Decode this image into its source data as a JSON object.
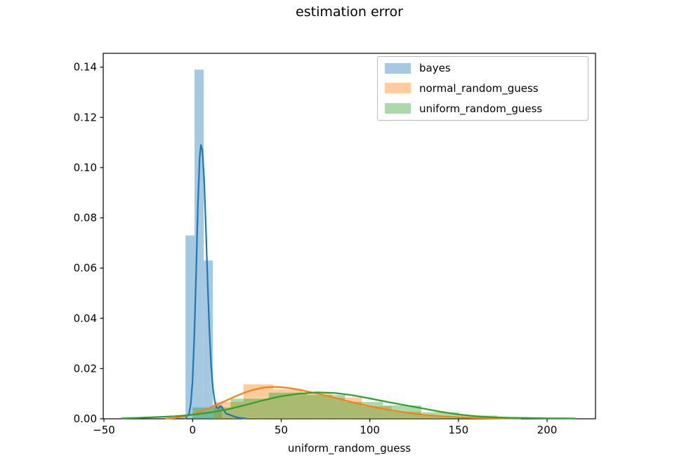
{
  "title": "estimation error",
  "xlabel": "uniform_random_guess",
  "legend": {
    "items": [
      {
        "label": "bayes"
      },
      {
        "label": "normal_random_guess"
      },
      {
        "label": "uniform_random_guess"
      }
    ]
  },
  "colors": {
    "bayes": "#1f77b4",
    "normal_random_guess": "#ff7f0e",
    "uniform_random_guess": "#2ca02c",
    "fill_alpha": 0.4,
    "axis": "#000000",
    "legend_border": "#b9b9b9"
  },
  "chart_data": {
    "type": "histogram+kde",
    "title": "estimation error",
    "xlabel": "uniform_random_guess",
    "ylabel": "",
    "xlim": [
      -50.4,
      227.3
    ],
    "ylim": [
      0,
      0.1455
    ],
    "xticks": [
      -50,
      0,
      50,
      100,
      150,
      200
    ],
    "xtick_labels": [
      "−50",
      "0",
      "50",
      "100",
      "150",
      "200"
    ],
    "yticks": [
      0,
      0.02,
      0.04,
      0.06,
      0.08,
      0.1,
      0.12,
      0.14
    ],
    "ytick_labels": [
      "0.00",
      "0.02",
      "0.04",
      "0.06",
      "0.08",
      "0.10",
      "0.12",
      "0.14"
    ],
    "grid": false,
    "legend_position": "upper right",
    "series": [
      {
        "name": "bayes",
        "color": "#1f77b4",
        "bars": [
          [
            -4.0,
            1.1,
            0.073
          ],
          [
            1.1,
            6.3,
            0.139
          ],
          [
            6.3,
            11.4,
            0.063
          ],
          [
            11.4,
            16.6,
            0.0055
          ]
        ],
        "kde_x": [
          -4,
          -2,
          -1,
          0,
          1,
          2,
          3,
          4,
          4.7,
          5.5,
          6.5,
          7.5,
          8.5,
          9.5,
          10.5,
          11.5,
          12.5,
          13.5,
          14.5,
          15.5,
          16.5,
          17.5,
          19,
          21,
          23,
          26,
          30
        ],
        "kde_y": [
          0.0002,
          0.002,
          0.006,
          0.015,
          0.033,
          0.058,
          0.085,
          0.104,
          0.109,
          0.107,
          0.096,
          0.076,
          0.054,
          0.035,
          0.021,
          0.012,
          0.007,
          0.0045,
          0.0042,
          0.005,
          0.0048,
          0.0035,
          0.002,
          0.0016,
          0.001,
          0.0004,
          0.0001
        ]
      },
      {
        "name": "normal_random_guess",
        "color": "#ff7f0e",
        "bars": [
          [
            12.0,
            28.7,
            0.0067
          ],
          [
            28.7,
            45.4,
            0.0137
          ],
          [
            45.4,
            62.1,
            0.0118
          ],
          [
            62.1,
            78.8,
            0.0104
          ],
          [
            78.8,
            95.5,
            0.0085
          ],
          [
            95.5,
            112.2,
            0.005
          ],
          [
            112.2,
            128.9,
            0.0028
          ],
          [
            128.9,
            145.6,
            0.0012
          ]
        ],
        "kde_x": [
          -15,
          -10,
          -5,
          0,
          5,
          10,
          15,
          20,
          25,
          30,
          35,
          40,
          45,
          50,
          55,
          60,
          70,
          80,
          90,
          100,
          110,
          120,
          130,
          140,
          150,
          160,
          170,
          185
        ],
        "kde_y": [
          0.0001,
          0.0003,
          0.0008,
          0.0018,
          0.003,
          0.0045,
          0.006,
          0.0076,
          0.0092,
          0.0106,
          0.0117,
          0.0124,
          0.0127,
          0.0126,
          0.0122,
          0.0116,
          0.0101,
          0.0084,
          0.0066,
          0.005,
          0.0036,
          0.0025,
          0.0016,
          0.001,
          0.0006,
          0.0003,
          0.0002,
          0.0001
        ]
      },
      {
        "name": "uniform_random_guess",
        "color": "#2ca02c",
        "bars": [
          [
            0,
            21.5,
            0.0045
          ],
          [
            21.5,
            43.0,
            0.008
          ],
          [
            43.0,
            64.5,
            0.0104
          ],
          [
            64.5,
            86.0,
            0.0095
          ],
          [
            86.0,
            107.5,
            0.0067
          ],
          [
            107.5,
            129.0,
            0.0053
          ],
          [
            129.0,
            150.5,
            0.0026
          ],
          [
            150.5,
            172.0,
            0.0013
          ],
          [
            172.0,
            193.5,
            0.0006
          ],
          [
            193.5,
            215.0,
            0.0004
          ]
        ],
        "kde_x": [
          -40,
          -30,
          -20,
          -10,
          0,
          10,
          20,
          30,
          40,
          50,
          60,
          70,
          80,
          90,
          100,
          110,
          120,
          130,
          140,
          150,
          160,
          170,
          180,
          190,
          200,
          210,
          216
        ],
        "kde_y": [
          0.0002,
          0.0004,
          0.0007,
          0.001,
          0.0016,
          0.0025,
          0.0038,
          0.0055,
          0.0074,
          0.009,
          0.01,
          0.0105,
          0.0103,
          0.0094,
          0.0081,
          0.0067,
          0.0054,
          0.0041,
          0.0028,
          0.0017,
          0.001,
          0.0006,
          0.0004,
          0.0003,
          0.0002,
          0.0002,
          0.0001
        ]
      }
    ]
  }
}
